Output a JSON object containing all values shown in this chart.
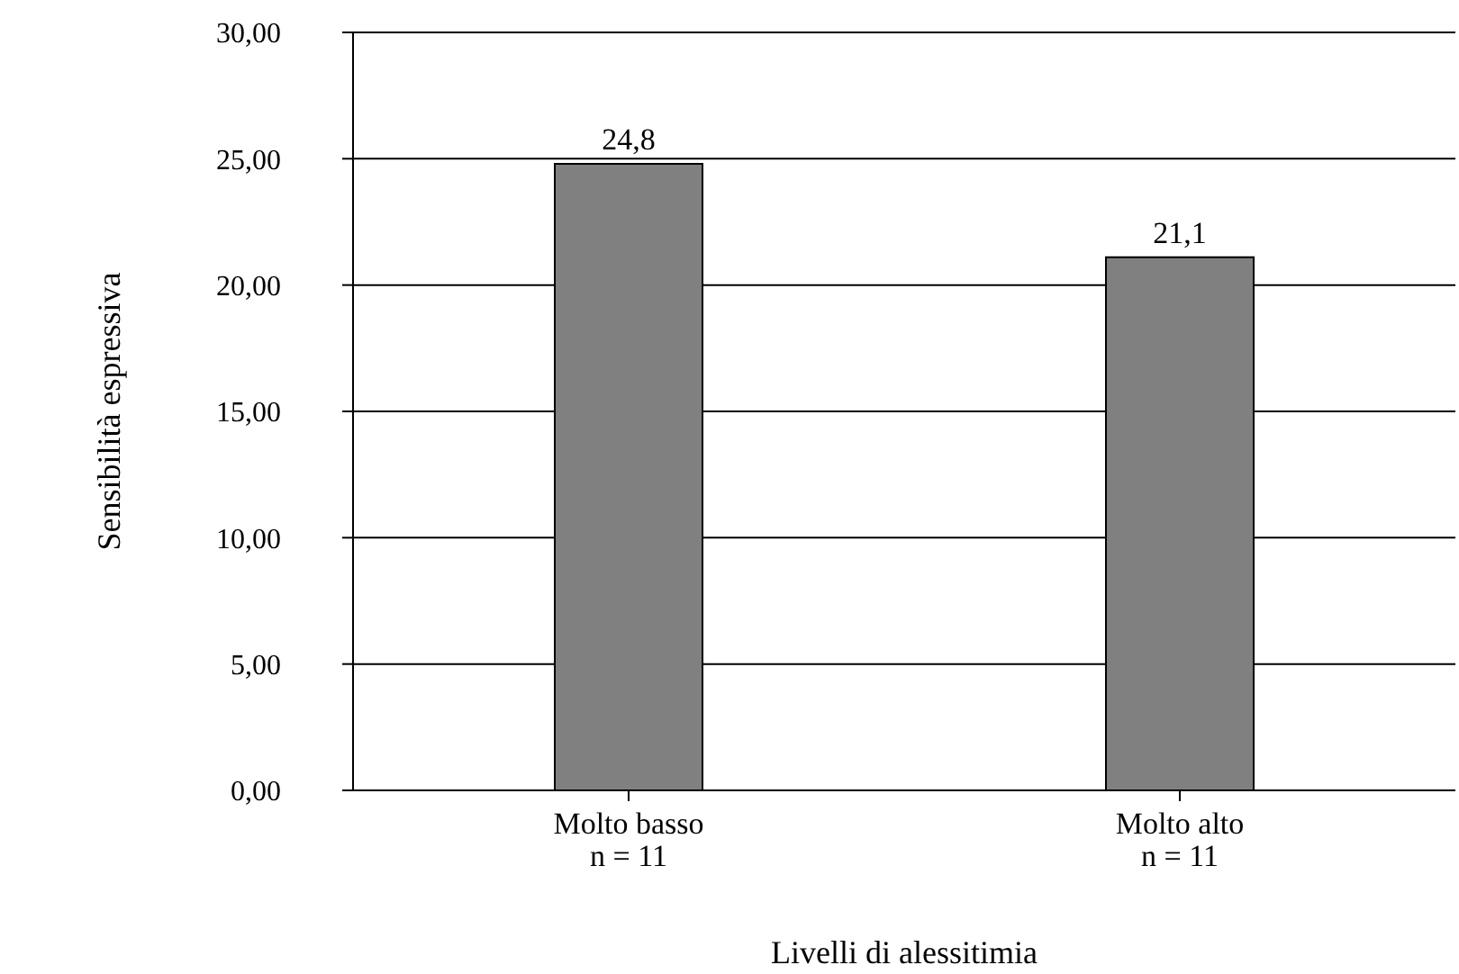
{
  "chart_data": {
    "type": "bar",
    "xlabel": "Livelli di alessitimia",
    "ylabel": "Sensibilità espressiva",
    "categories": [
      "Molto basso\nn = 11",
      "Molto alto\nn = 11"
    ],
    "values": [
      24.8,
      21.1
    ],
    "value_labels": [
      "24,8",
      "21,1"
    ],
    "color": "#808080",
    "ylim": [
      0,
      30
    ],
    "yticks": [
      {
        "value": 0,
        "label": "0,00"
      },
      {
        "value": 5,
        "label": "5,00"
      },
      {
        "value": 10,
        "label": "10,00"
      },
      {
        "value": 15,
        "label": "15,00"
      },
      {
        "value": 20,
        "label": "20,00"
      },
      {
        "value": 25,
        "label": "25,00"
      },
      {
        "value": 30,
        "label": "30,00"
      }
    ],
    "grid": "y"
  }
}
